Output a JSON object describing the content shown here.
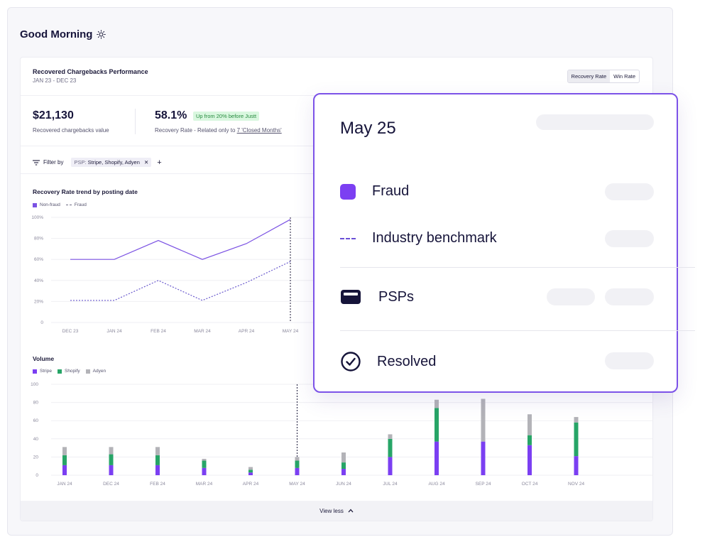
{
  "greeting": "Good Morning",
  "card": {
    "title": "Recovered Chargebacks Performance",
    "subtitle": "JAN 23 - DEC 23",
    "toggle": [
      "Recovery Rate",
      "Win Rate"
    ],
    "metrics": {
      "recovered_value": "$21,130",
      "recovered_label": "Recovered chargebacks value",
      "rate": "58.1%",
      "rate_badge": "Up from 20% before Justt",
      "rate_label_prefix": "Recovery Rate - Related only to ",
      "rate_label_link": "7 'Closed Months'"
    },
    "filter": {
      "label": "Filter by",
      "chip_key": "PSP:",
      "chip_value": "Stripe, Shopify, Adyen",
      "add": "+"
    },
    "view_less": "View less"
  },
  "trend": {
    "title": "Recovery Rate trend by posting date",
    "legend": [
      "Non-fraud",
      "Fraud"
    ],
    "chart_data": {
      "type": "line",
      "categories": [
        "DEC 23",
        "JAN 24",
        "FEB 24",
        "MAR 24",
        "APR 24",
        "MAY 24"
      ],
      "y_ticks": [
        "100%",
        "80%",
        "60%",
        "40%",
        "20%",
        "0"
      ],
      "ylim": [
        0,
        100
      ],
      "series": [
        {
          "name": "Non-fraud",
          "values": [
            60,
            60,
            78,
            60,
            75,
            98
          ],
          "color": "#7b52e3"
        },
        {
          "name": "Fraud",
          "values": [
            21,
            21,
            40,
            21,
            38,
            58
          ],
          "color": "#6a5acd"
        }
      ],
      "highlight_category": "MAY 24"
    }
  },
  "volume": {
    "title": "Volume",
    "legend": [
      "Stripe",
      "Shopify",
      "Adyen"
    ],
    "chart_data": {
      "type": "bar",
      "stacked": true,
      "categories": [
        "JAN 24",
        "DEC 24",
        "FEB 24",
        "MAR 24",
        "APR 24",
        "MAY 24",
        "JUN 24",
        "JUL 24",
        "AUG 24",
        "SEP 24",
        "OCT 24",
        "NOV 24"
      ],
      "y_ticks": [
        "100",
        "80",
        "60",
        "40",
        "20",
        "0"
      ],
      "ylim": [
        0,
        100
      ],
      "series": [
        {
          "name": "Stripe",
          "color": "#7b3ff2",
          "values": [
            11,
            11,
            11,
            8,
            3,
            8,
            7,
            20,
            37,
            37,
            33,
            21
          ]
        },
        {
          "name": "Shopify",
          "color": "#27a567",
          "values": [
            11,
            12,
            11,
            8,
            3,
            8,
            7,
            20,
            37,
            0,
            11,
            37
          ]
        },
        {
          "name": "Adyen",
          "color": "#b3b3b8",
          "values": [
            9,
            8,
            9,
            2,
            3,
            4,
            11,
            5,
            9,
            47,
            23,
            6
          ]
        }
      ],
      "highlight_category": "MAY 24"
    }
  },
  "tooltip": {
    "date": "May 25",
    "rows": [
      {
        "label": "Fraud",
        "icon": "fraud-square-icon"
      },
      {
        "label": "Industry benchmark",
        "icon": "dashed-line-icon"
      },
      {
        "label": "PSPs",
        "icon": "wallet-icon"
      },
      {
        "label": "Resolved",
        "icon": "check-circle-icon"
      }
    ],
    "accent": "#7c52e8"
  }
}
